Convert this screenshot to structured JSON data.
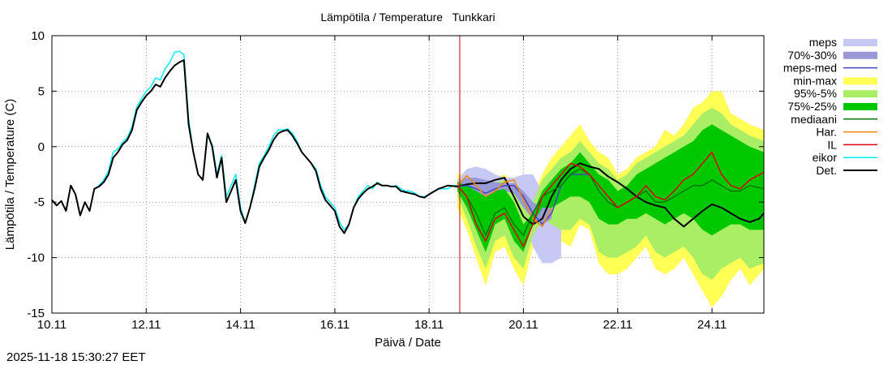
{
  "chart_data": {
    "type": "line",
    "title": "Lämpötila / Temperature   Tunkkari",
    "xlabel": "Päivä / Date",
    "ylabel": "Lämpötila / Temperature (C)",
    "timestamp": "2025-11-18 15:30:27 EET",
    "xlim": [
      10,
      25.1
    ],
    "ylim": [
      -15,
      10
    ],
    "x_ticks": [
      {
        "value": 10,
        "label": "10.11"
      },
      {
        "value": 12,
        "label": "12.11"
      },
      {
        "value": 14,
        "label": "14.11"
      },
      {
        "value": 16,
        "label": "16.11"
      },
      {
        "value": 18,
        "label": "18.11"
      },
      {
        "value": 20,
        "label": "20.11"
      },
      {
        "value": 22,
        "label": "22.11"
      },
      {
        "value": 24,
        "label": "24.11"
      }
    ],
    "y_ticks": [
      {
        "value": 10,
        "label": "10"
      },
      {
        "value": 5,
        "label": "5"
      },
      {
        "value": 0,
        "label": "0"
      },
      {
        "value": -5,
        "label": "-5"
      },
      {
        "value": -10,
        "label": "-10"
      },
      {
        "value": -15,
        "label": "-15"
      }
    ],
    "grid": true,
    "forecast_start_x": 18.65,
    "colors": {
      "meps": "#c8c8f5",
      "meps_70_30": "#9999d8",
      "meps_med": "#4444bb",
      "min_max": "#ffff55",
      "p95_5": "#aaee66",
      "p75_25": "#00c800",
      "mediaani": "#007700",
      "har": "#ee8800",
      "il": "#dd0000",
      "eikor": "#00eeee",
      "det": "#000000",
      "vline": "#cc0000"
    },
    "legend": [
      {
        "key": "meps",
        "label": "meps",
        "style": "band"
      },
      {
        "key": "meps_70_30",
        "label": "70%-30%",
        "style": "band"
      },
      {
        "key": "meps_med",
        "label": "meps-med",
        "style": "line"
      },
      {
        "key": "min_max",
        "label": "min-max",
        "style": "band"
      },
      {
        "key": "p95_5",
        "label": "95%-5%",
        "style": "band"
      },
      {
        "key": "p75_25",
        "label": "75%-25%",
        "style": "band"
      },
      {
        "key": "mediaani",
        "label": "mediaani",
        "style": "line"
      },
      {
        "key": "har",
        "label": "Har.",
        "style": "line"
      },
      {
        "key": "il",
        "label": "IL",
        "style": "line"
      },
      {
        "key": "eikor",
        "label": "eikor",
        "style": "line"
      },
      {
        "key": "det",
        "label": "Det.",
        "style": "line"
      }
    ],
    "bands": [
      {
        "key": "min_max",
        "x": [
          18.6,
          18.8,
          19.0,
          19.2,
          19.4,
          19.6,
          19.8,
          20.0,
          20.2,
          20.4,
          20.6,
          20.8,
          21.0,
          21.2,
          21.4,
          21.6,
          21.8,
          22.0,
          22.2,
          22.4,
          22.6,
          22.8,
          23.0,
          23.2,
          23.4,
          23.6,
          23.8,
          24.0,
          24.2,
          24.4,
          24.6,
          24.8,
          25.1
        ],
        "lo": [
          -5.5,
          -7.5,
          -10.0,
          -12.5,
          -9.5,
          -9.0,
          -11.0,
          -12.5,
          -9.0,
          -7.0,
          -7.5,
          -8.5,
          -9.0,
          -7.0,
          -7.5,
          -10.5,
          -11.5,
          -11.5,
          -11.0,
          -10.0,
          -9.0,
          -11.0,
          -11.5,
          -11.0,
          -10.0,
          -11.5,
          -13.0,
          -14.5,
          -13.5,
          -12.0,
          -11.0,
          -12.5,
          -11.0
        ],
        "hi": [
          -2.5,
          -2.5,
          -2.8,
          -3.0,
          -2.8,
          -2.5,
          -3.5,
          -5.0,
          -4.5,
          -2.5,
          -1.0,
          0.0,
          1.0,
          2.0,
          0.5,
          -0.5,
          -1.0,
          -2.5,
          -2.0,
          -1.0,
          -0.5,
          0.0,
          1.5,
          1.0,
          2.0,
          3.5,
          4.0,
          5.0,
          5.0,
          3.0,
          2.5,
          2.0,
          1.5
        ]
      },
      {
        "key": "meps",
        "x": [
          18.6,
          18.8,
          19.0,
          19.2,
          19.4,
          19.6,
          19.8,
          20.0,
          20.2,
          20.4,
          20.6,
          20.8
        ],
        "lo": [
          -4.0,
          -4.5,
          -5.5,
          -6.0,
          -5.5,
          -4.5,
          -5.0,
          -7.0,
          -9.0,
          -10.5,
          -10.5,
          -10.0
        ],
        "hi": [
          -3.0,
          -2.0,
          -1.8,
          -2.0,
          -2.5,
          -2.8,
          -2.8,
          -2.5,
          -2.5,
          -4.0,
          -3.0,
          -3.0
        ]
      },
      {
        "key": "p95_5",
        "x": [
          18.6,
          18.8,
          19.0,
          19.2,
          19.4,
          19.6,
          19.8,
          20.0,
          20.2,
          20.4,
          20.6,
          20.8,
          21.0,
          21.2,
          21.4,
          21.6,
          21.8,
          22.0,
          22.2,
          22.4,
          22.6,
          22.8,
          23.0,
          23.2,
          23.4,
          23.6,
          23.8,
          24.0,
          24.2,
          24.4,
          24.6,
          24.8,
          25.1
        ],
        "lo": [
          -4.5,
          -6.5,
          -9.0,
          -11.0,
          -8.5,
          -8.0,
          -10.0,
          -11.0,
          -8.0,
          -6.5,
          -7.0,
          -7.5,
          -7.5,
          -6.5,
          -7.0,
          -9.5,
          -10.0,
          -10.0,
          -9.5,
          -9.0,
          -8.0,
          -9.5,
          -10.0,
          -9.5,
          -9.0,
          -10.0,
          -11.5,
          -12.0,
          -11.0,
          -10.5,
          -10.0,
          -11.0,
          -10.5
        ],
        "hi": [
          -3.0,
          -3.0,
          -3.2,
          -3.5,
          -3.2,
          -3.0,
          -4.0,
          -5.5,
          -5.0,
          -3.0,
          -2.0,
          -1.0,
          -0.5,
          0.5,
          -0.5,
          -1.5,
          -2.0,
          -3.0,
          -2.5,
          -1.5,
          -1.0,
          -0.5,
          0.0,
          0.5,
          1.0,
          2.0,
          3.0,
          3.5,
          3.0,
          2.0,
          1.5,
          1.0,
          0.5
        ]
      },
      {
        "key": "meps_70_30",
        "x": [
          18.6,
          18.8,
          19.0,
          19.2,
          19.4,
          19.6,
          19.8,
          20.0,
          20.2,
          20.4,
          20.6
        ],
        "lo": [
          -3.8,
          -4.0,
          -4.5,
          -4.8,
          -4.5,
          -4.0,
          -4.2,
          -5.5,
          -6.5,
          -7.0,
          -6.5
        ],
        "hi": [
          -3.2,
          -2.8,
          -2.8,
          -3.0,
          -3.2,
          -3.3,
          -3.3,
          -4.0,
          -5.0,
          -5.5,
          -4.5
        ]
      },
      {
        "key": "p75_25",
        "x": [
          18.6,
          18.8,
          19.0,
          19.2,
          19.4,
          19.6,
          19.8,
          20.0,
          20.2,
          20.4,
          20.6,
          20.8,
          21.0,
          21.2,
          21.4,
          21.6,
          21.8,
          22.0,
          22.2,
          22.4,
          22.6,
          22.8,
          23.0,
          23.2,
          23.4,
          23.6,
          23.8,
          24.0,
          24.2,
          24.4,
          24.6,
          24.8,
          25.1
        ],
        "lo": [
          -4.0,
          -5.5,
          -7.5,
          -9.5,
          -7.0,
          -6.5,
          -8.5,
          -9.5,
          -7.0,
          -5.5,
          -5.5,
          -5.0,
          -4.5,
          -4.5,
          -5.0,
          -6.5,
          -7.0,
          -7.0,
          -6.5,
          -6.5,
          -6.0,
          -6.5,
          -7.0,
          -6.5,
          -6.0,
          -6.5,
          -7.5,
          -8.0,
          -7.5,
          -7.0,
          -7.0,
          -7.5,
          -7.5
        ],
        "hi": [
          -3.2,
          -3.5,
          -4.0,
          -4.5,
          -4.0,
          -3.8,
          -5.0,
          -7.0,
          -6.0,
          -4.0,
          -3.0,
          -2.0,
          -1.5,
          -0.5,
          -1.5,
          -2.5,
          -3.0,
          -4.0,
          -3.5,
          -2.5,
          -2.0,
          -1.5,
          -1.0,
          -0.5,
          0.0,
          0.5,
          1.5,
          2.0,
          1.5,
          1.0,
          0.5,
          0.0,
          -0.5
        ]
      }
    ],
    "series": [
      {
        "key": "eikor",
        "name": "eikor",
        "x": [
          10.0,
          10.1,
          10.2,
          10.3,
          10.4,
          10.5,
          10.6,
          10.7,
          10.8,
          10.9,
          11.0,
          11.1,
          11.2,
          11.3,
          11.4,
          11.5,
          11.6,
          11.7,
          11.8,
          11.9,
          12.0,
          12.1,
          12.2,
          12.3,
          12.4,
          12.5,
          12.6,
          12.7,
          12.8,
          12.9,
          13.0,
          13.1,
          13.2,
          13.3,
          13.4,
          13.5,
          13.6,
          13.7,
          13.8,
          13.9,
          14.0,
          14.1,
          14.2,
          14.3,
          14.4,
          14.5,
          14.6,
          14.7,
          14.8,
          14.9,
          15.0,
          15.1,
          15.2,
          15.3,
          15.4,
          15.5,
          15.6,
          15.7,
          15.8,
          15.9,
          16.0,
          16.1,
          16.2,
          16.3,
          16.4,
          16.5,
          16.6,
          16.7,
          16.8,
          16.9,
          17.0,
          17.1,
          17.2,
          17.3,
          17.4,
          17.5,
          17.6,
          17.7,
          17.8,
          17.9,
          18.0,
          18.1,
          18.2,
          18.3,
          18.4,
          18.5,
          18.6
        ],
        "y": [
          -4.8,
          -5.3,
          -4.9,
          -5.8,
          -3.5,
          -4.3,
          -6.2,
          -5.0,
          -5.8,
          -3.8,
          -3.5,
          -3.0,
          -2.2,
          -0.5,
          -0.2,
          0.4,
          0.8,
          1.8,
          3.6,
          4.3,
          5.0,
          5.4,
          6.2,
          6.0,
          7.0,
          7.6,
          8.5,
          8.6,
          8.3,
          2.5,
          -0.5,
          -2.5,
          -3.0,
          1.0,
          0.2,
          -2.5,
          -0.8,
          -4.5,
          -3.5,
          -2.5,
          -5.5,
          -6.8,
          -5.5,
          -3.5,
          -1.5,
          -0.8,
          0.0,
          1.0,
          1.5,
          1.5,
          1.6,
          1.2,
          0.5,
          -0.5,
          -1.0,
          -1.5,
          -2.0,
          -3.5,
          -4.5,
          -5.0,
          -5.5,
          -6.8,
          -7.5,
          -7.0,
          -5.5,
          -4.5,
          -4.0,
          -3.5,
          -3.8,
          -3.2,
          -3.5,
          -3.5,
          -3.6,
          -3.5,
          -3.8,
          -4.0,
          -4.0,
          -4.2,
          -4.5,
          -4.5,
          -4.3,
          -4.0,
          -3.8,
          -3.8,
          -3.8,
          -3.5,
          -3.5
        ]
      },
      {
        "key": "det",
        "name": "Det.",
        "x": [
          10.0,
          10.1,
          10.2,
          10.3,
          10.4,
          10.5,
          10.6,
          10.7,
          10.8,
          10.9,
          11.0,
          11.1,
          11.2,
          11.3,
          11.4,
          11.5,
          11.6,
          11.7,
          11.8,
          11.9,
          12.0,
          12.1,
          12.2,
          12.3,
          12.4,
          12.5,
          12.6,
          12.7,
          12.8,
          12.9,
          13.0,
          13.1,
          13.2,
          13.3,
          13.4,
          13.5,
          13.6,
          13.7,
          13.8,
          13.9,
          14.0,
          14.1,
          14.2,
          14.3,
          14.4,
          14.5,
          14.6,
          14.7,
          14.8,
          14.9,
          15.0,
          15.1,
          15.2,
          15.3,
          15.4,
          15.5,
          15.6,
          15.7,
          15.8,
          15.9,
          16.0,
          16.1,
          16.2,
          16.3,
          16.4,
          16.5,
          16.6,
          16.7,
          16.8,
          16.9,
          17.0,
          17.1,
          17.2,
          17.3,
          17.4,
          17.5,
          17.6,
          17.7,
          17.8,
          17.9,
          18.0,
          18.2,
          18.4,
          18.6,
          18.8,
          19.0,
          19.2,
          19.4,
          19.6,
          19.8,
          20.0,
          20.2,
          20.4,
          20.6,
          20.8,
          21.0,
          21.2,
          21.4,
          21.6,
          21.8,
          22.0,
          22.2,
          22.4,
          22.6,
          22.8,
          23.0,
          23.2,
          23.4,
          23.6,
          23.8,
          24.0,
          24.2,
          24.4,
          24.6,
          24.8,
          25.0,
          25.1
        ],
        "y": [
          -4.8,
          -5.3,
          -4.9,
          -5.8,
          -3.5,
          -4.3,
          -6.2,
          -5.0,
          -5.8,
          -3.8,
          -3.6,
          -3.2,
          -2.5,
          -1.0,
          -0.5,
          0.2,
          0.6,
          1.5,
          3.3,
          4.0,
          4.6,
          5.0,
          5.6,
          5.4,
          6.2,
          6.8,
          7.3,
          7.6,
          7.8,
          2.0,
          -0.5,
          -2.5,
          -3.0,
          1.2,
          0.0,
          -2.8,
          -1.0,
          -5.0,
          -4.0,
          -3.0,
          -5.8,
          -6.9,
          -5.5,
          -3.8,
          -1.8,
          -1.0,
          -0.3,
          0.6,
          1.2,
          1.4,
          1.5,
          1.0,
          0.3,
          -0.5,
          -1.0,
          -1.5,
          -2.2,
          -3.8,
          -4.8,
          -5.3,
          -5.8,
          -7.2,
          -7.8,
          -7.0,
          -5.5,
          -4.7,
          -4.2,
          -3.8,
          -3.6,
          -3.3,
          -3.5,
          -3.5,
          -3.6,
          -3.6,
          -4.0,
          -4.1,
          -4.2,
          -4.3,
          -4.5,
          -4.6,
          -4.3,
          -3.8,
          -3.5,
          -3.6,
          -3.4,
          -3.3,
          -3.3,
          -3.0,
          -2.8,
          -4.5,
          -6.3,
          -7.0,
          -6.5,
          -4.5,
          -3.0,
          -2.0,
          -1.5,
          -1.8,
          -2.0,
          -2.7,
          -3.2,
          -3.8,
          -4.5,
          -5.0,
          -5.3,
          -5.5,
          -6.5,
          -7.2,
          -6.5,
          -5.8,
          -5.2,
          -5.5,
          -6.0,
          -6.5,
          -6.8,
          -6.5,
          -6.0
        ]
      },
      {
        "key": "meps_med",
        "name": "meps-med",
        "x": [
          18.6,
          18.8,
          19.0,
          19.2,
          19.4,
          19.6,
          19.8,
          20.0,
          20.2,
          20.4,
          20.6,
          20.8,
          21.0,
          21.2,
          21.4
        ],
        "y": [
          -3.6,
          -3.5,
          -3.8,
          -4.2,
          -3.8,
          -3.5,
          -3.5,
          -4.5,
          -6.0,
          -7.0,
          -6.0,
          -3.5,
          -2.5,
          -2.5,
          -2.5
        ]
      },
      {
        "key": "har",
        "name": "Har.",
        "x": [
          18.6,
          18.8,
          19.0,
          19.2,
          19.4,
          19.6,
          19.8,
          20.0,
          20.2,
          20.4,
          20.6
        ],
        "y": [
          -3.5,
          -2.6,
          -3.5,
          -4.5,
          -4.0,
          -3.2,
          -3.0,
          -4.8,
          -6.5,
          -7.2,
          -5.5
        ]
      },
      {
        "key": "mediaani",
        "name": "mediaani",
        "x": [
          18.6,
          18.8,
          19.0,
          19.2,
          19.4,
          19.6,
          19.8,
          20.0,
          20.2,
          20.4,
          20.6,
          20.8,
          21.0,
          21.2,
          21.4,
          21.6,
          21.8,
          22.0,
          22.2,
          22.4,
          22.6,
          22.8,
          23.0,
          23.2,
          23.4,
          23.6,
          23.8,
          24.0,
          24.2,
          24.4,
          24.6,
          24.8,
          25.1
        ],
        "y": [
          -3.5,
          -4.5,
          -6.0,
          -8.0,
          -6.0,
          -5.5,
          -7.0,
          -8.0,
          -6.0,
          -4.5,
          -4.0,
          -3.5,
          -2.5,
          -2.0,
          -2.5,
          -4.0,
          -5.0,
          -5.5,
          -5.0,
          -4.5,
          -4.0,
          -5.0,
          -5.0,
          -4.5,
          -4.0,
          -3.5,
          -3.5,
          -3.0,
          -3.5,
          -4.0,
          -4.0,
          -3.5,
          -3.8
        ]
      },
      {
        "key": "il",
        "name": "IL",
        "x": [
          18.6,
          18.8,
          19.0,
          19.2,
          19.4,
          19.6,
          19.8,
          20.0,
          20.2,
          20.4,
          20.6,
          20.8,
          21.0,
          21.2,
          21.4,
          21.6,
          21.8,
          22.0,
          22.2,
          22.4,
          22.6,
          22.8,
          23.0,
          23.2,
          23.4,
          23.6,
          23.8,
          24.0,
          24.2,
          24.4,
          24.6,
          24.8,
          25.1
        ],
        "y": [
          -3.5,
          -4.5,
          -7.0,
          -8.5,
          -6.5,
          -6.0,
          -7.5,
          -9.0,
          -7.0,
          -4.5,
          -3.5,
          -2.5,
          -1.5,
          -1.8,
          -2.5,
          -3.5,
          -4.5,
          -5.5,
          -5.0,
          -4.5,
          -3.5,
          -4.5,
          -4.8,
          -4.0,
          -3.0,
          -2.5,
          -1.5,
          -0.5,
          -2.5,
          -3.5,
          -3.8,
          -3.0,
          -2.3
        ]
      }
    ]
  }
}
